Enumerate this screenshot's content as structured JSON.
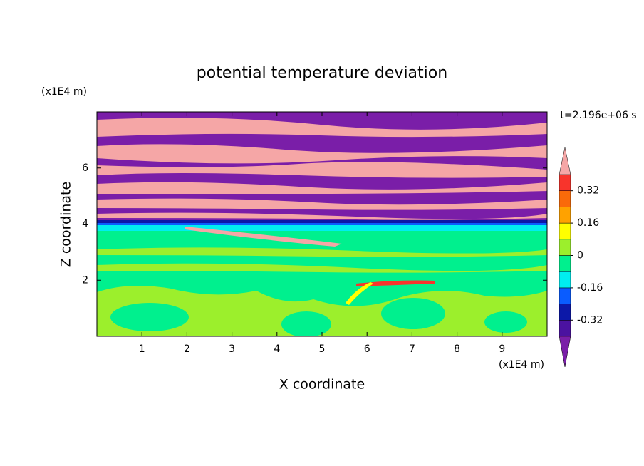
{
  "chart_data": {
    "type": "contour",
    "title": "potential temperature deviation",
    "xlabel": "X coordinate",
    "ylabel": "Z coordinate",
    "xunit": "(x1E4 m)",
    "yunit": "(x1E4 m)",
    "time_label": "t=2.196e+06 s",
    "xlim": [
      0,
      10
    ],
    "ylim": [
      0,
      8
    ],
    "xticks": [
      1,
      2,
      3,
      4,
      5,
      6,
      7,
      8,
      9
    ],
    "yticks": [
      2,
      4,
      6
    ],
    "clim": [
      -0.4,
      0.4
    ],
    "cticks": [
      -0.32,
      -0.16,
      0,
      0.16,
      0.32
    ],
    "colors": [
      "#4b12a0",
      "#0c18a8",
      "#0a5cff",
      "#00eef0",
      "#00f08e",
      "#9cef2c",
      "#ffff00",
      "#ffa200",
      "#fa6a0a",
      "#f8342c"
    ],
    "under_color": "#7a1ea8",
    "over_color": "#f5a6a6"
  }
}
